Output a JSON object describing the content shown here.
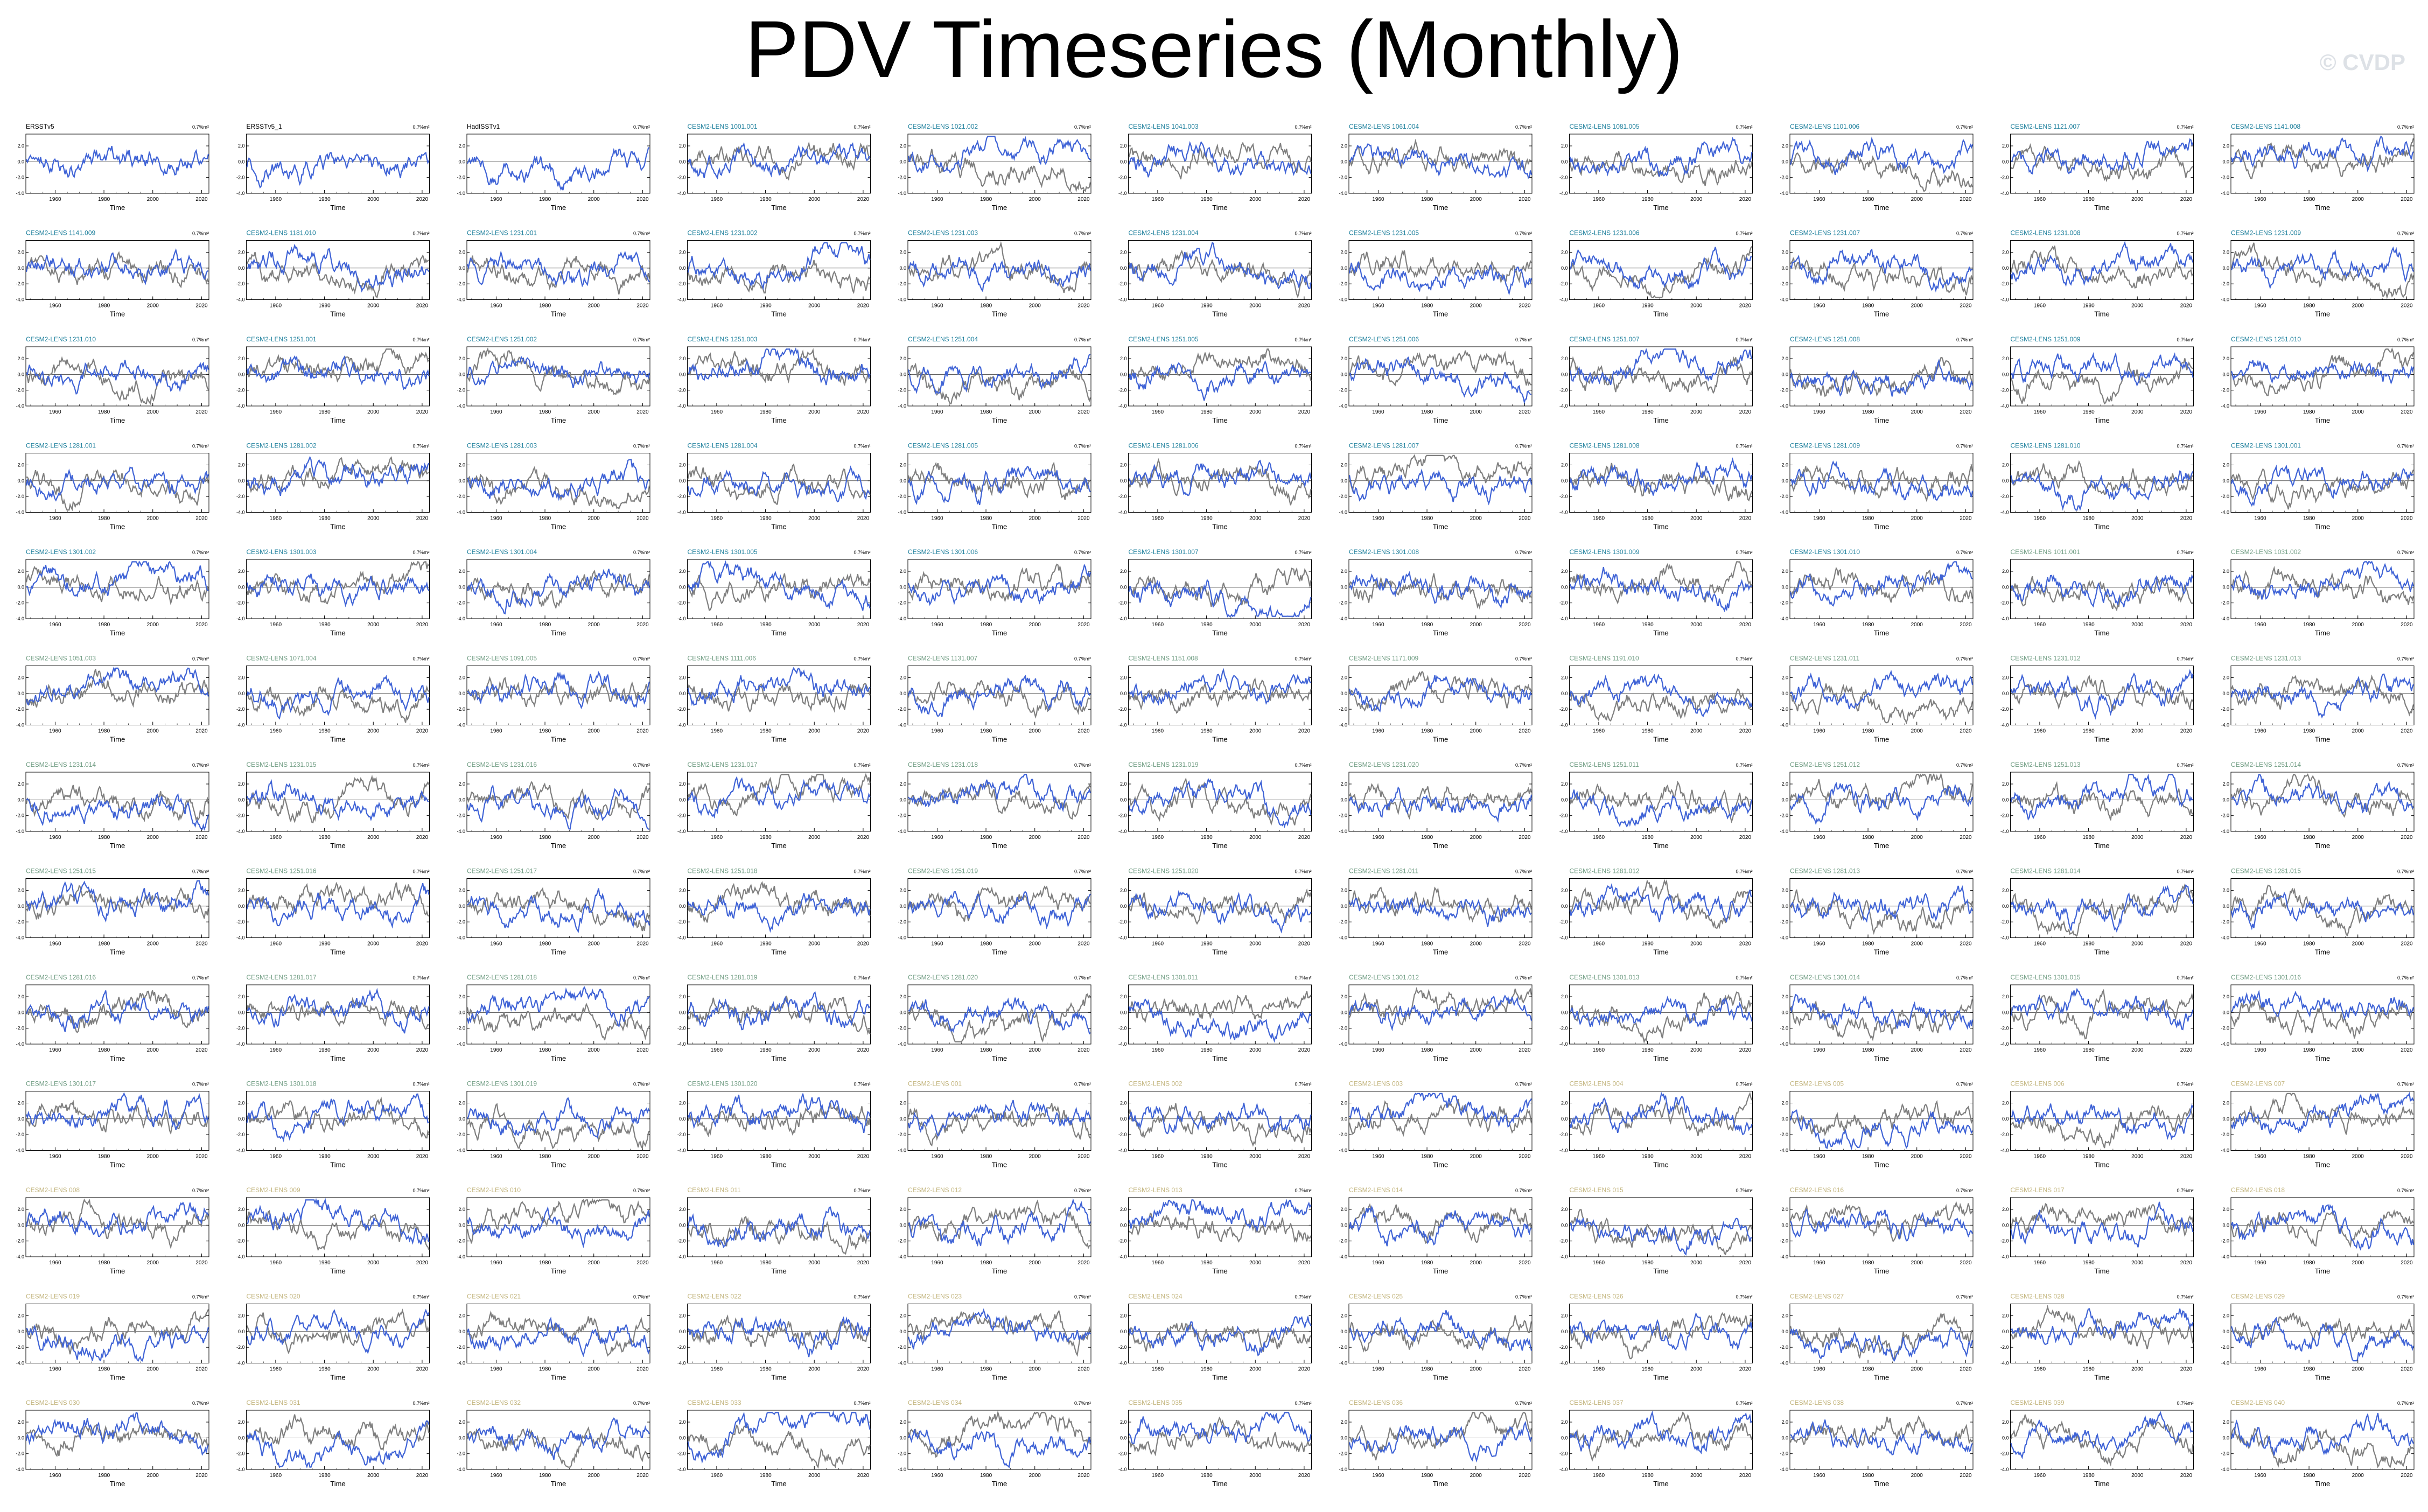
{
  "page": {
    "title": "PDV Timeseries (Monthly)",
    "credit": "© CVDP"
  },
  "colors": {
    "observed_line": "#7f7f7f",
    "simulated_line": "#3f63d6",
    "obs_title": "#000000",
    "model_title_group1": "#1c7f9c",
    "model_title_group2": "#6f9c82",
    "model_title_group3": "#c2b47c"
  },
  "chart_data": {
    "type": "line",
    "xlabel": "Time",
    "ylim": [
      -4.0,
      3.5
    ],
    "x_ticks": [
      "1960",
      "1980",
      "2000",
      "2020"
    ],
    "y_ticks": [
      "2.0",
      "0.0",
      "-2.0",
      "-4.0"
    ],
    "corner_label": "0.7%m²",
    "series": [
      {
        "name": "gray line"
      },
      {
        "name": "blue line"
      }
    ],
    "panels": [
      {
        "title": "ERSSTv5",
        "group": 0
      },
      {
        "title": "ERSSTv5_1",
        "group": 0
      },
      {
        "title": "HadISSTv1",
        "group": 0
      },
      {
        "title": "CESM2-LENS 1001.001",
        "group": 1
      },
      {
        "title": "CESM2-LENS 1021.002",
        "group": 1
      },
      {
        "title": "CESM2-LENS 1041.003",
        "group": 1
      },
      {
        "title": "CESM2-LENS 1061.004",
        "group": 1
      },
      {
        "title": "CESM2-LENS 1081.005",
        "group": 1
      },
      {
        "title": "CESM2-LENS 1101.006",
        "group": 1
      },
      {
        "title": "CESM2-LENS 1121.007",
        "group": 1
      },
      {
        "title": "CESM2-LENS 1141.008",
        "group": 1
      },
      {
        "title": "CESM2-LENS 1141.009",
        "group": 1
      },
      {
        "title": "CESM2-LENS 1181.010",
        "group": 1
      },
      {
        "title": "CESM2-LENS 1231.001",
        "group": 1
      },
      {
        "title": "CESM2-LENS 1231.002",
        "group": 1
      },
      {
        "title": "CESM2-LENS 1231.003",
        "group": 1
      },
      {
        "title": "CESM2-LENS 1231.004",
        "group": 1
      },
      {
        "title": "CESM2-LENS 1231.005",
        "group": 1
      },
      {
        "title": "CESM2-LENS 1231.006",
        "group": 1
      },
      {
        "title": "CESM2-LENS 1231.007",
        "group": 1
      },
      {
        "title": "CESM2-LENS 1231.008",
        "group": 1
      },
      {
        "title": "CESM2-LENS 1231.009",
        "group": 1
      },
      {
        "title": "CESM2-LENS 1231.010",
        "group": 1
      },
      {
        "title": "CESM2-LENS 1251.001",
        "group": 1
      },
      {
        "title": "CESM2-LENS 1251.002",
        "group": 1
      },
      {
        "title": "CESM2-LENS 1251.003",
        "group": 1
      },
      {
        "title": "CESM2-LENS 1251.004",
        "group": 1
      },
      {
        "title": "CESM2-LENS 1251.005",
        "group": 1
      },
      {
        "title": "CESM2-LENS 1251.006",
        "group": 1
      },
      {
        "title": "CESM2-LENS 1251.007",
        "group": 1
      },
      {
        "title": "CESM2-LENS 1251.008",
        "group": 1
      },
      {
        "title": "CESM2-LENS 1251.009",
        "group": 1
      },
      {
        "title": "CESM2-LENS 1251.010",
        "group": 1
      },
      {
        "title": "CESM2-LENS 1281.001",
        "group": 1
      },
      {
        "title": "CESM2-LENS 1281.002",
        "group": 1
      },
      {
        "title": "CESM2-LENS 1281.003",
        "group": 1
      },
      {
        "title": "CESM2-LENS 1281.004",
        "group": 1
      },
      {
        "title": "CESM2-LENS 1281.005",
        "group": 1
      },
      {
        "title": "CESM2-LENS 1281.006",
        "group": 1
      },
      {
        "title": "CESM2-LENS 1281.007",
        "group": 1
      },
      {
        "title": "CESM2-LENS 1281.008",
        "group": 1
      },
      {
        "title": "CESM2-LENS 1281.009",
        "group": 1
      },
      {
        "title": "CESM2-LENS 1281.010",
        "group": 1
      },
      {
        "title": "CESM2-LENS 1301.001",
        "group": 1
      },
      {
        "title": "CESM2-LENS 1301.002",
        "group": 1
      },
      {
        "title": "CESM2-LENS 1301.003",
        "group": 1
      },
      {
        "title": "CESM2-LENS 1301.004",
        "group": 1
      },
      {
        "title": "CESM2-LENS 1301.005",
        "group": 1
      },
      {
        "title": "CESM2-LENS 1301.006",
        "group": 1
      },
      {
        "title": "CESM2-LENS 1301.007",
        "group": 1
      },
      {
        "title": "CESM2-LENS 1301.008",
        "group": 1
      },
      {
        "title": "CESM2-LENS 1301.009",
        "group": 1
      },
      {
        "title": "CESM2-LENS 1301.010",
        "group": 1
      },
      {
        "title": "CESM2-LENS 1011.001",
        "group": 2
      },
      {
        "title": "CESM2-LENS 1031.002",
        "group": 2
      },
      {
        "title": "CESM2-LENS 1051.003",
        "group": 2
      },
      {
        "title": "CESM2-LENS 1071.004",
        "group": 2
      },
      {
        "title": "CESM2-LENS 1091.005",
        "group": 2
      },
      {
        "title": "CESM2-LENS 1111.006",
        "group": 2
      },
      {
        "title": "CESM2-LENS 1131.007",
        "group": 2
      },
      {
        "title": "CESM2-LENS 1151.008",
        "group": 2
      },
      {
        "title": "CESM2-LENS 1171.009",
        "group": 2
      },
      {
        "title": "CESM2-LENS 1191.010",
        "group": 2
      },
      {
        "title": "CESM2-LENS 1231.011",
        "group": 2
      },
      {
        "title": "CESM2-LENS 1231.012",
        "group": 2
      },
      {
        "title": "CESM2-LENS 1231.013",
        "group": 2
      },
      {
        "title": "CESM2-LENS 1231.014",
        "group": 2
      },
      {
        "title": "CESM2-LENS 1231.015",
        "group": 2
      },
      {
        "title": "CESM2-LENS 1231.016",
        "group": 2
      },
      {
        "title": "CESM2-LENS 1231.017",
        "group": 2
      },
      {
        "title": "CESM2-LENS 1231.018",
        "group": 2
      },
      {
        "title": "CESM2-LENS 1231.019",
        "group": 2
      },
      {
        "title": "CESM2-LENS 1231.020",
        "group": 2
      },
      {
        "title": "CESM2-LENS 1251.011",
        "group": 2
      },
      {
        "title": "CESM2-LENS 1251.012",
        "group": 2
      },
      {
        "title": "CESM2-LENS 1251.013",
        "group": 2
      },
      {
        "title": "CESM2-LENS 1251.014",
        "group": 2
      },
      {
        "title": "CESM2-LENS 1251.015",
        "group": 2
      },
      {
        "title": "CESM2-LENS 1251.016",
        "group": 2
      },
      {
        "title": "CESM2-LENS 1251.017",
        "group": 2
      },
      {
        "title": "CESM2-LENS 1251.018",
        "group": 2
      },
      {
        "title": "CESM2-LENS 1251.019",
        "group": 2
      },
      {
        "title": "CESM2-LENS 1251.020",
        "group": 2
      },
      {
        "title": "CESM2-LENS 1281.011",
        "group": 2
      },
      {
        "title": "CESM2-LENS 1281.012",
        "group": 2
      },
      {
        "title": "CESM2-LENS 1281.013",
        "group": 2
      },
      {
        "title": "CESM2-LENS 1281.014",
        "group": 2
      },
      {
        "title": "CESM2-LENS 1281.015",
        "group": 2
      },
      {
        "title": "CESM2-LENS 1281.016",
        "group": 2
      },
      {
        "title": "CESM2-LENS 1281.017",
        "group": 2
      },
      {
        "title": "CESM2-LENS 1281.018",
        "group": 2
      },
      {
        "title": "CESM2-LENS 1281.019",
        "group": 2
      },
      {
        "title": "CESM2-LENS 1281.020",
        "group": 2
      },
      {
        "title": "CESM2-LENS 1301.011",
        "group": 2
      },
      {
        "title": "CESM2-LENS 1301.012",
        "group": 2
      },
      {
        "title": "CESM2-LENS 1301.013",
        "group": 2
      },
      {
        "title": "CESM2-LENS 1301.014",
        "group": 2
      },
      {
        "title": "CESM2-LENS 1301.015",
        "group": 2
      },
      {
        "title": "CESM2-LENS 1301.016",
        "group": 2
      },
      {
        "title": "CESM2-LENS 1301.017",
        "group": 2
      },
      {
        "title": "CESM2-LENS 1301.018",
        "group": 2
      },
      {
        "title": "CESM2-LENS 1301.019",
        "group": 2
      },
      {
        "title": "CESM2-LENS 1301.020",
        "group": 2
      },
      {
        "title": "CESM2-LENS 001",
        "group": 3
      },
      {
        "title": "CESM2-LENS 002",
        "group": 3
      },
      {
        "title": "CESM2-LENS 003",
        "group": 3
      },
      {
        "title": "CESM2-LENS 004",
        "group": 3
      },
      {
        "title": "CESM2-LENS 005",
        "group": 3
      },
      {
        "title": "CESM2-LENS 006",
        "group": 3
      },
      {
        "title": "CESM2-LENS 007",
        "group": 3
      },
      {
        "title": "CESM2-LENS 008",
        "group": 3
      },
      {
        "title": "CESM2-LENS 009",
        "group": 3
      },
      {
        "title": "CESM2-LENS 010",
        "group": 3
      },
      {
        "title": "CESM2-LENS 011",
        "group": 3
      },
      {
        "title": "CESM2-LENS 012",
        "group": 3
      },
      {
        "title": "CESM2-LENS 013",
        "group": 3
      },
      {
        "title": "CESM2-LENS 014",
        "group": 3
      },
      {
        "title": "CESM2-LENS 015",
        "group": 3
      },
      {
        "title": "CESM2-LENS 016",
        "group": 3
      },
      {
        "title": "CESM2-LENS 017",
        "group": 3
      },
      {
        "title": "CESM2-LENS 018",
        "group": 3
      },
      {
        "title": "CESM2-LENS 019",
        "group": 3
      },
      {
        "title": "CESM2-LENS 020",
        "group": 3
      },
      {
        "title": "CESM2-LENS 021",
        "group": 3
      },
      {
        "title": "CESM2-LENS 022",
        "group": 3
      },
      {
        "title": "CESM2-LENS 023",
        "group": 3
      },
      {
        "title": "CESM2-LENS 024",
        "group": 3
      },
      {
        "title": "CESM2-LENS 025",
        "group": 3
      },
      {
        "title": "CESM2-LENS 026",
        "group": 3
      },
      {
        "title": "CESM2-LENS 027",
        "group": 3
      },
      {
        "title": "CESM2-LENS 028",
        "group": 3
      },
      {
        "title": "CESM2-LENS 029",
        "group": 3
      },
      {
        "title": "CESM2-LENS 030",
        "group": 3
      },
      {
        "title": "CESM2-LENS 031",
        "group": 3
      },
      {
        "title": "CESM2-LENS 032",
        "group": 3
      },
      {
        "title": "CESM2-LENS 033",
        "group": 3
      },
      {
        "title": "CESM2-LENS 034",
        "group": 3
      },
      {
        "title": "CESM2-LENS 035",
        "group": 3
      },
      {
        "title": "CESM2-LENS 036",
        "group": 3
      },
      {
        "title": "CESM2-LENS 037",
        "group": 3
      },
      {
        "title": "CESM2-LENS 038",
        "group": 3
      },
      {
        "title": "CESM2-LENS 039",
        "group": 3
      },
      {
        "title": "CESM2-LENS 040",
        "group": 3
      },
      {
        "title": "CESM2-LENS 041",
        "group": 3
      },
      {
        "title": "CESM2-LENS 042",
        "group": 3
      }
    ]
  }
}
